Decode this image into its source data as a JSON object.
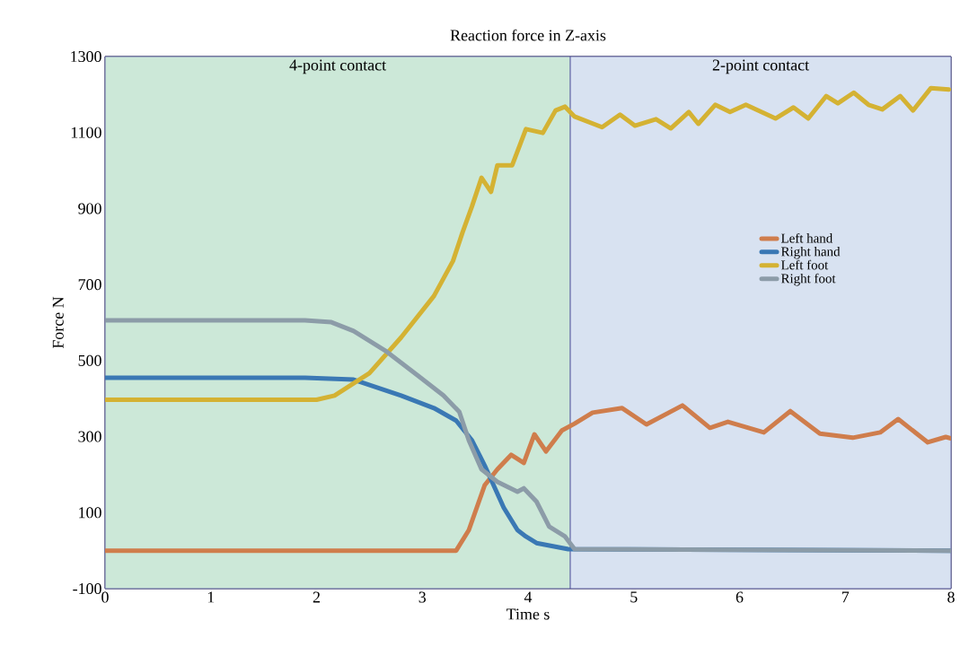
{
  "chart_data": {
    "type": "line",
    "title": "Reaction force in Z-axis",
    "xlabel": "Time s",
    "ylabel": "Force N",
    "xlim": [
      0,
      8
    ],
    "ylim": [
      -100,
      1300
    ],
    "xticks": [
      0,
      1,
      2,
      3,
      4,
      5,
      6,
      7,
      8
    ],
    "yticks": [
      -100,
      100,
      300,
      500,
      700,
      900,
      1100,
      1300
    ],
    "grid": true,
    "legend": "right",
    "bands": [
      {
        "axis": "x",
        "from": 0,
        "to": 4.4,
        "label": "4-point contact",
        "color": "#cce8d8"
      },
      {
        "axis": "x",
        "from": 4.4,
        "to": 8,
        "label": "2-point contact",
        "color": "#d8e2f1"
      }
    ],
    "series": [
      {
        "name": "Left hand",
        "color": "#cf7d4c",
        "x": [
          0,
          3.32,
          3.44,
          3.59,
          3.71,
          3.84,
          3.96,
          4.06,
          4.17,
          4.32,
          4.44,
          4.61,
          4.89,
          5.12,
          5.46,
          5.72,
          5.89,
          6.23,
          6.48,
          6.76,
          7.07,
          7.33,
          7.5,
          7.78,
          7.95,
          8
        ],
        "values": [
          0,
          0,
          54,
          172,
          214,
          252,
          231,
          306,
          261,
          316,
          334,
          363,
          375,
          332,
          382,
          323,
          339,
          311,
          367,
          308,
          297,
          311,
          346,
          285,
          299,
          295
        ]
      },
      {
        "name": "Right hand",
        "color": "#3a78b4",
        "x": [
          0,
          1.89,
          2.35,
          2.8,
          3.11,
          3.32,
          3.47,
          3.59,
          3.77,
          3.9,
          3.98,
          4.08,
          4.38,
          8
        ],
        "values": [
          455,
          455,
          450,
          408,
          375,
          342,
          290,
          224,
          113,
          54,
          37,
          20,
          4,
          0
        ]
      },
      {
        "name": "Left foot",
        "color": "#d4b233",
        "x": [
          0,
          2.0,
          2.17,
          2.5,
          2.8,
          3.11,
          3.29,
          3.38,
          3.47,
          3.56,
          3.65,
          3.71,
          3.85,
          3.98,
          4.14,
          4.26,
          4.35,
          4.44,
          4.7,
          4.87,
          5.01,
          5.21,
          5.35,
          5.52,
          5.61,
          5.77,
          5.91,
          6.06,
          6.34,
          6.51,
          6.65,
          6.82,
          6.93,
          7.08,
          7.22,
          7.35,
          7.52,
          7.64,
          7.81,
          7.98
        ],
        "values": [
          397,
          397,
          408,
          467,
          561,
          670,
          762,
          837,
          906,
          981,
          944,
          1014,
          1014,
          1109,
          1099,
          1158,
          1168,
          1142,
          1114,
          1147,
          1118,
          1135,
          1111,
          1154,
          1123,
          1173,
          1154,
          1173,
          1137,
          1166,
          1137,
          1196,
          1177,
          1205,
          1173,
          1161,
          1196,
          1158,
          1217,
          1213
        ]
      },
      {
        "name": "Right foot",
        "color": "#8c9ca8",
        "x": [
          0,
          1.89,
          2.14,
          2.35,
          2.65,
          2.96,
          3.2,
          3.35,
          3.44,
          3.56,
          3.71,
          3.9,
          3.96,
          4.08,
          4.2,
          4.35,
          4.44,
          8
        ],
        "values": [
          606,
          606,
          601,
          578,
          526,
          460,
          408,
          365,
          290,
          214,
          181,
          155,
          164,
          129,
          63,
          37,
          4,
          0
        ]
      }
    ]
  }
}
